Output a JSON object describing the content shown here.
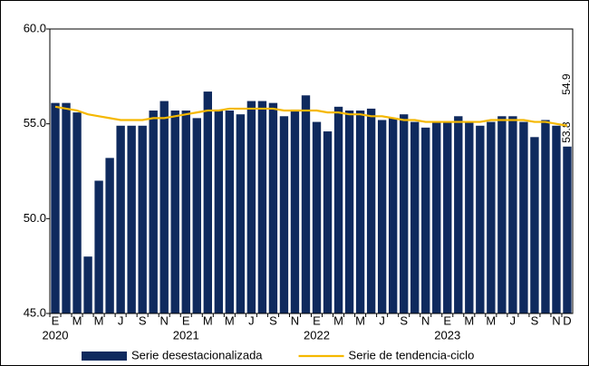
{
  "chart_data": {
    "type": "bar_line",
    "categories": [
      "E",
      null,
      "M",
      null,
      "M",
      null,
      "J",
      null,
      "S",
      null,
      "N",
      null,
      "E",
      null,
      "M",
      null,
      "M",
      null,
      "J",
      null,
      "S",
      null,
      "N",
      null,
      "E",
      null,
      "M",
      null,
      "M",
      null,
      "J",
      null,
      "S",
      null,
      "N",
      null,
      "E",
      null,
      "M",
      null,
      "M",
      null,
      "J",
      null,
      "S",
      null,
      "N",
      "D"
    ],
    "year_labels": [
      "2020",
      "2021",
      "2022",
      "2023"
    ],
    "series": [
      {
        "name": "Serie desestacionalizada",
        "color": "#0f2a5e",
        "kind": "bar",
        "values": [
          56.1,
          56.1,
          55.6,
          48.0,
          52.0,
          53.2,
          54.9,
          54.9,
          54.9,
          55.7,
          56.2,
          55.7,
          55.7,
          55.3,
          56.7,
          55.7,
          55.7,
          55.5,
          56.2,
          56.2,
          56.1,
          55.4,
          55.7,
          56.5,
          55.1,
          54.6,
          55.9,
          55.7,
          55.7,
          55.8,
          55.2,
          55.3,
          55.5,
          55.1,
          54.8,
          55.1,
          55.1,
          55.4,
          55.1,
          54.9,
          55.1,
          55.4,
          55.4,
          55.1,
          54.3,
          55.2,
          54.9,
          53.8
        ]
      },
      {
        "name": "Serie de tendencia-ciclo",
        "color": "#f5b800",
        "kind": "line",
        "values": [
          55.9,
          55.8,
          55.7,
          55.5,
          55.4,
          55.3,
          55.2,
          55.2,
          55.2,
          55.3,
          55.3,
          55.4,
          55.5,
          55.6,
          55.7,
          55.7,
          55.8,
          55.8,
          55.8,
          55.8,
          55.8,
          55.7,
          55.7,
          55.7,
          55.7,
          55.6,
          55.6,
          55.5,
          55.5,
          55.4,
          55.4,
          55.3,
          55.2,
          55.2,
          55.1,
          55.1,
          55.1,
          55.1,
          55.1,
          55.1,
          55.2,
          55.2,
          55.2,
          55.2,
          55.1,
          55.1,
          55.0,
          54.9
        ]
      }
    ],
    "ylim": [
      45,
      60
    ],
    "yticks": [
      {
        "value": 45,
        "label": "45.0"
      },
      {
        "value": 50,
        "label": "50.0"
      },
      {
        "value": 55,
        "label": "55.0"
      },
      {
        "value": 60,
        "label": "60.0"
      }
    ],
    "label_last": true,
    "legend": "bottom"
  }
}
